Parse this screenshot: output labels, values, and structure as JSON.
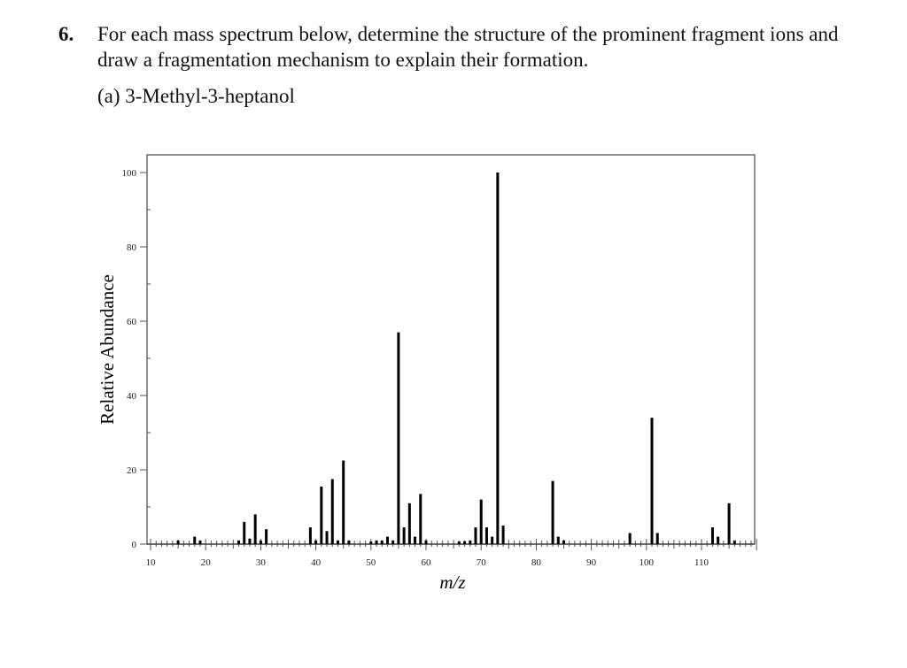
{
  "question": {
    "number": "6.",
    "text": "For each mass spectrum below, determine the structure of the prominent fragment ions and draw a fragmentation mechanism to explain their formation.",
    "part": "(a)  3-Methyl-3-heptanol"
  },
  "chart_data": {
    "type": "bar",
    "title": "3-Methyl-3-heptanol",
    "xlabel": "m/z",
    "ylabel": "Relative Abundance",
    "xlim": [
      9.4,
      120
    ],
    "ylim": [
      0,
      105
    ],
    "xticks": [
      10,
      20,
      30,
      40,
      50,
      60,
      70,
      80,
      90,
      100,
      110
    ],
    "yticks": [
      0,
      20,
      40,
      60,
      80,
      100
    ],
    "grid": false,
    "legend": null,
    "peaks": [
      {
        "mz": 15,
        "abundance": 1
      },
      {
        "mz": 18,
        "abundance": 2
      },
      {
        "mz": 19,
        "abundance": 1
      },
      {
        "mz": 26,
        "abundance": 1
      },
      {
        "mz": 27,
        "abundance": 6
      },
      {
        "mz": 28,
        "abundance": 1.5
      },
      {
        "mz": 29,
        "abundance": 8
      },
      {
        "mz": 30,
        "abundance": 1
      },
      {
        "mz": 31,
        "abundance": 4
      },
      {
        "mz": 39,
        "abundance": 4.5
      },
      {
        "mz": 40,
        "abundance": 1
      },
      {
        "mz": 41,
        "abundance": 15.5
      },
      {
        "mz": 42,
        "abundance": 3.5
      },
      {
        "mz": 43,
        "abundance": 17.5
      },
      {
        "mz": 44,
        "abundance": 1
      },
      {
        "mz": 45,
        "abundance": 22.5
      },
      {
        "mz": 46,
        "abundance": 1
      },
      {
        "mz": 50,
        "abundance": 0.7
      },
      {
        "mz": 51,
        "abundance": 1
      },
      {
        "mz": 52,
        "abundance": 1
      },
      {
        "mz": 53,
        "abundance": 2
      },
      {
        "mz": 54,
        "abundance": 1
      },
      {
        "mz": 55,
        "abundance": 57
      },
      {
        "mz": 56,
        "abundance": 4.5
      },
      {
        "mz": 57,
        "abundance": 11
      },
      {
        "mz": 58,
        "abundance": 2
      },
      {
        "mz": 59,
        "abundance": 13.5
      },
      {
        "mz": 60,
        "abundance": 1
      },
      {
        "mz": 66,
        "abundance": 0.7
      },
      {
        "mz": 67,
        "abundance": 0.8
      },
      {
        "mz": 68,
        "abundance": 1
      },
      {
        "mz": 69,
        "abundance": 4.5
      },
      {
        "mz": 70,
        "abundance": 12
      },
      {
        "mz": 71,
        "abundance": 4.5
      },
      {
        "mz": 72,
        "abundance": 2
      },
      {
        "mz": 73,
        "abundance": 100
      },
      {
        "mz": 74,
        "abundance": 5
      },
      {
        "mz": 83,
        "abundance": 17
      },
      {
        "mz": 84,
        "abundance": 2
      },
      {
        "mz": 85,
        "abundance": 1
      },
      {
        "mz": 97,
        "abundance": 3
      },
      {
        "mz": 101,
        "abundance": 34
      },
      {
        "mz": 102,
        "abundance": 3
      },
      {
        "mz": 112,
        "abundance": 4.5
      },
      {
        "mz": 113,
        "abundance": 2
      },
      {
        "mz": 115,
        "abundance": 11
      },
      {
        "mz": 116,
        "abundance": 1
      }
    ]
  }
}
